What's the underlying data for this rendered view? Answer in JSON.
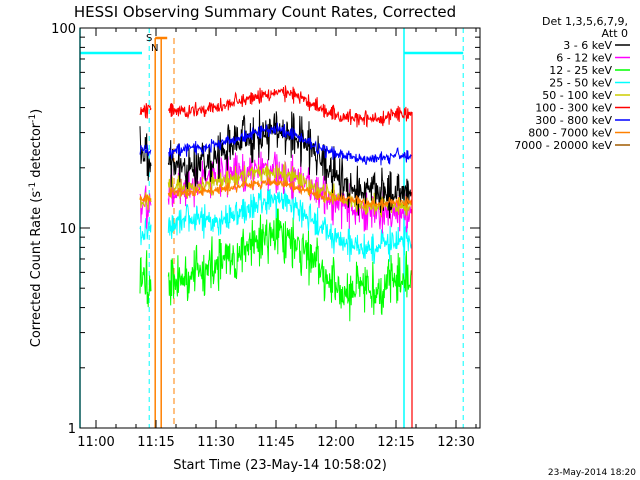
{
  "chart_data": {
    "type": "line",
    "title": "HESSI Observing Summary Count Rates, Corrected",
    "xlabel": "Start Time (23-May-14 10:58:02)",
    "ylabel": "Corrected Count Rate (s",
    "ylabel_sup1": "-1",
    "ylabel_mid": " detector",
    "ylabel_sup2": "-1",
    "ylabel_end": ")",
    "yscale": "log",
    "xlim_min": [
      -2,
      98
    ],
    "ylim": [
      1,
      100
    ],
    "x_ticks": [
      {
        "v": 2,
        "label": "11:00"
      },
      {
        "v": 17,
        "label": "11:15"
      },
      {
        "v": 32,
        "label": "11:30"
      },
      {
        "v": 47,
        "label": "11:45"
      },
      {
        "v": 62,
        "label": "12:00"
      },
      {
        "v": 77,
        "label": "12:15"
      },
      {
        "v": 92,
        "label": "12:30"
      }
    ],
    "y_ticks": [
      {
        "v": 1,
        "label": "1"
      },
      {
        "v": 10,
        "label": "10"
      },
      {
        "v": 100,
        "label": "100"
      }
    ],
    "legend_header": [
      "Det 1,3,5,6,7,9,",
      "Att 0"
    ],
    "legend_placement": "right, outside plot",
    "series": [
      {
        "name": "3 - 6 keV",
        "color": "#000000",
        "points": [
          [
            13,
            25
          ],
          [
            16,
            20
          ],
          [
            20,
            20
          ],
          [
            26,
            20
          ],
          [
            32,
            23
          ],
          [
            38,
            27
          ],
          [
            44,
            30
          ],
          [
            48,
            31
          ],
          [
            52,
            28
          ],
          [
            56,
            25
          ],
          [
            60,
            20
          ],
          [
            64,
            17
          ],
          [
            68,
            15
          ],
          [
            72,
            15
          ],
          [
            77,
            15
          ]
        ],
        "noise": 0.09
      },
      {
        "name": "6 - 12 keV",
        "color": "#ff00ff",
        "points": [
          [
            13,
            12
          ],
          [
            16,
            14
          ],
          [
            20,
            15
          ],
          [
            26,
            16
          ],
          [
            32,
            18
          ],
          [
            38,
            19
          ],
          [
            44,
            20
          ],
          [
            48,
            19
          ],
          [
            52,
            18
          ],
          [
            56,
            16
          ],
          [
            60,
            14
          ],
          [
            64,
            13
          ],
          [
            68,
            12
          ],
          [
            72,
            12
          ],
          [
            77,
            12
          ]
        ],
        "noise": 0.08
      },
      {
        "name": "12 - 25 keV",
        "color": "#00ff00",
        "points": [
          [
            13,
            6
          ],
          [
            16,
            5
          ],
          [
            20,
            5
          ],
          [
            26,
            6
          ],
          [
            32,
            6.5
          ],
          [
            38,
            7.5
          ],
          [
            44,
            9
          ],
          [
            48,
            10
          ],
          [
            52,
            8.5
          ],
          [
            56,
            7
          ],
          [
            60,
            5.5
          ],
          [
            64,
            4.8
          ],
          [
            68,
            5
          ],
          [
            72,
            5
          ],
          [
            77,
            5.5
          ]
        ],
        "noise": 0.1
      },
      {
        "name": "25 - 50 keV",
        "color": "#00ffff",
        "points": [
          [
            13,
            9
          ],
          [
            16,
            10
          ],
          [
            20,
            10
          ],
          [
            26,
            11
          ],
          [
            32,
            11
          ],
          [
            38,
            12
          ],
          [
            44,
            13.5
          ],
          [
            48,
            14
          ],
          [
            52,
            13
          ],
          [
            56,
            11
          ],
          [
            60,
            9.5
          ],
          [
            64,
            8.5
          ],
          [
            68,
            8
          ],
          [
            72,
            8
          ],
          [
            77,
            8.5
          ]
        ],
        "noise": 0.06
      },
      {
        "name": "50 - 100 keV",
        "color": "#cccc00",
        "points": [
          [
            13,
            13
          ],
          [
            16,
            14
          ],
          [
            20,
            16
          ],
          [
            26,
            16
          ],
          [
            32,
            17
          ],
          [
            38,
            18
          ],
          [
            44,
            19
          ],
          [
            48,
            19
          ],
          [
            52,
            18
          ],
          [
            56,
            16
          ],
          [
            60,
            15
          ],
          [
            64,
            14
          ],
          [
            68,
            13
          ],
          [
            72,
            13
          ],
          [
            77,
            13
          ]
        ],
        "noise": 0.04
      },
      {
        "name": "100 - 300 keV",
        "color": "#ff0000",
        "points": [
          [
            13,
            38
          ],
          [
            16,
            40
          ],
          [
            20,
            38
          ],
          [
            26,
            39
          ],
          [
            32,
            40
          ],
          [
            38,
            43
          ],
          [
            44,
            47
          ],
          [
            48,
            48
          ],
          [
            52,
            46
          ],
          [
            56,
            42
          ],
          [
            60,
            38
          ],
          [
            64,
            36
          ],
          [
            68,
            35
          ],
          [
            72,
            35
          ],
          [
            77,
            37
          ]
        ],
        "noise": 0.03
      },
      {
        "name": "300 - 800 keV",
        "color": "#0000ff",
        "points": [
          [
            13,
            25
          ],
          [
            16,
            24
          ],
          [
            20,
            24
          ],
          [
            26,
            25
          ],
          [
            32,
            26
          ],
          [
            38,
            28
          ],
          [
            44,
            31
          ],
          [
            48,
            31
          ],
          [
            52,
            29
          ],
          [
            56,
            26
          ],
          [
            60,
            24
          ],
          [
            64,
            23
          ],
          [
            68,
            22
          ],
          [
            72,
            22
          ],
          [
            77,
            23
          ]
        ],
        "noise": 0.025
      },
      {
        "name": "800 - 7000 keV",
        "color": "#ff8000",
        "points": [
          [
            13,
            14
          ],
          [
            16,
            14
          ],
          [
            20,
            15
          ],
          [
            26,
            15
          ],
          [
            32,
            15.5
          ],
          [
            38,
            16
          ],
          [
            44,
            17
          ],
          [
            48,
            17
          ],
          [
            52,
            16
          ],
          [
            56,
            15
          ],
          [
            60,
            14
          ],
          [
            64,
            14
          ],
          [
            68,
            13.5
          ],
          [
            72,
            13
          ],
          [
            77,
            13.5
          ]
        ],
        "noise": 0.02
      },
      {
        "name": "7000 - 20000 keV",
        "color": "#a05a00",
        "points": [],
        "noise": 0
      }
    ],
    "attenuator_levels": [
      {
        "x0": -2,
        "x1": 13.5,
        "y": 75
      },
      {
        "x0": 79,
        "x1": 93.8,
        "y": 75
      }
    ],
    "cyan_solid_lines": [
      -2,
      79
    ],
    "cyan_dashed_lines": [
      15.3,
      93.8
    ],
    "saa": {
      "text": "S",
      "x": 15.3
    },
    "night": {
      "text": "N",
      "x": 16.2
    },
    "orange_interval": {
      "x0": 16.8,
      "x1": 18.3
    },
    "orange_dashed_line": 21.5,
    "orange_solid_lines": [
      16.8,
      18.3
    ],
    "red_dropout_x": 81
  },
  "timestamp": "23-May-2014 18:20"
}
